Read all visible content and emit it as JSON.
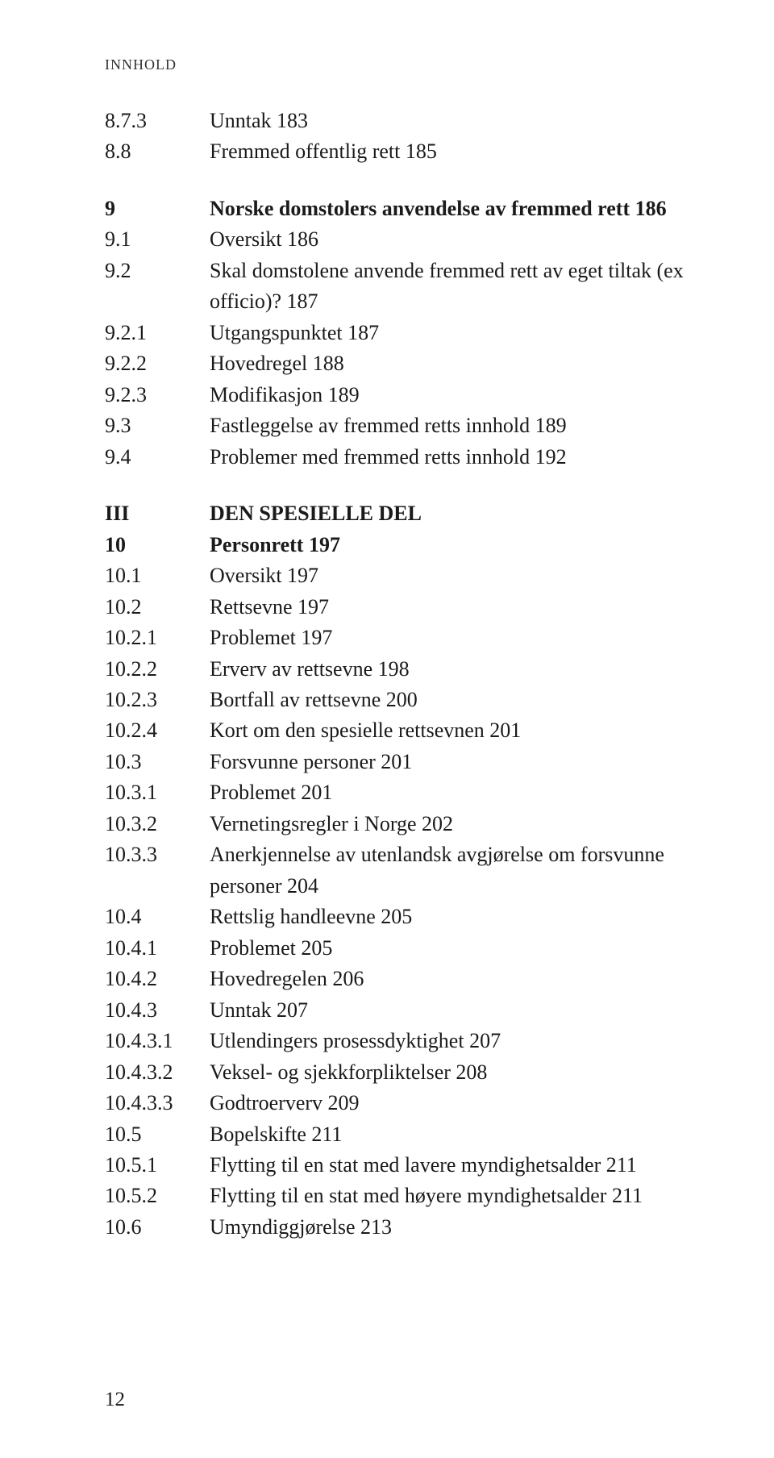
{
  "running_head": "INNHOLD",
  "page_number": "12",
  "sections": {
    "s0": {
      "num": "8.7.3",
      "text": "Unntak  183"
    },
    "s1": {
      "num": "8.8",
      "text": "Fremmed offentlig rett  185"
    },
    "s2": {
      "num": "9",
      "text": "Norske domstolers anvendelse av fremmed rett  186"
    },
    "s3": {
      "num": "9.1",
      "text": "Oversikt  186"
    },
    "s4": {
      "num": "9.2",
      "text": "Skal domstolene anvende fremmed rett av eget tiltak (ex officio)?  187"
    },
    "s5": {
      "num": "9.2.1",
      "text": "Utgangspunktet  187"
    },
    "s6": {
      "num": "9.2.2",
      "text": "Hovedregel  188"
    },
    "s7": {
      "num": "9.2.3",
      "text": "Modifikasjon  189"
    },
    "s8": {
      "num": "9.3",
      "text": "Fastleggelse av fremmed retts innhold  189"
    },
    "s9": {
      "num": "9.4",
      "text": "Problemer med fremmed retts innhold  192"
    },
    "s10": {
      "num": "III",
      "text": "DEN SPESIELLE DEL"
    },
    "s11": {
      "num": "10",
      "text": "Personrett  197"
    },
    "s12": {
      "num": "10.1",
      "text": "Oversikt  197"
    },
    "s13": {
      "num": "10.2",
      "text": "Rettsevne  197"
    },
    "s14": {
      "num": "10.2.1",
      "text": "Problemet  197"
    },
    "s15": {
      "num": "10.2.2",
      "text": "Erverv av rettsevne  198"
    },
    "s16": {
      "num": "10.2.3",
      "text": "Bortfall av rettsevne  200"
    },
    "s17": {
      "num": "10.2.4",
      "text": "Kort om den spesielle rettsevnen  201"
    },
    "s18": {
      "num": "10.3",
      "text": "Forsvunne personer  201"
    },
    "s19": {
      "num": "10.3.1",
      "text": "Problemet  201"
    },
    "s20": {
      "num": "10.3.2",
      "text": "Vernetingsregler i Norge  202"
    },
    "s21": {
      "num": "10.3.3",
      "text": "Anerkjennelse av utenlandsk avgjørelse om forsvunne personer  204"
    },
    "s22": {
      "num": "10.4",
      "text": "Rettslig handleevne  205"
    },
    "s23": {
      "num": "10.4.1",
      "text": "Problemet  205"
    },
    "s24": {
      "num": "10.4.2",
      "text": "Hovedregelen  206"
    },
    "s25": {
      "num": "10.4.3",
      "text": "Unntak  207"
    },
    "s26": {
      "num": "10.4.3.1",
      "text": "Utlendingers prosessdyktighet  207"
    },
    "s27": {
      "num": "10.4.3.2",
      "text": "Veksel- og sjekkforpliktelser  208"
    },
    "s28": {
      "num": "10.4.3.3",
      "text": "Godtroerverv  209"
    },
    "s29": {
      "num": "10.5",
      "text": "Bopelskifte  211"
    },
    "s30": {
      "num": "10.5.1",
      "text": "Flytting til en stat med lavere myndighetsalder  211"
    },
    "s31": {
      "num": "10.5.2",
      "text": "Flytting til en stat med høyere myndighetsalder  211"
    },
    "s32": {
      "num": "10.6",
      "text": "Umyndiggjørelse  213"
    }
  }
}
